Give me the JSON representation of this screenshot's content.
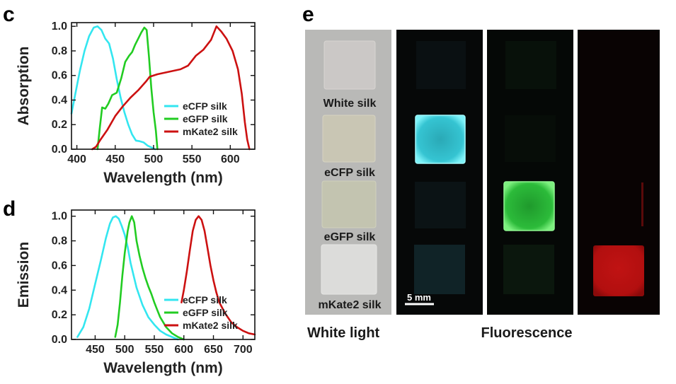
{
  "panels": {
    "c": {
      "letter": "c"
    },
    "d": {
      "letter": "d"
    },
    "e": {
      "letter": "e"
    }
  },
  "chart_data": [
    {
      "id": "c",
      "type": "line",
      "title": "",
      "xlabel": "Wavelength (nm)",
      "ylabel": "Absorption",
      "xlim": [
        393,
        632
      ],
      "ylim": [
        0,
        1.03
      ],
      "xticks": [
        400,
        450,
        500,
        550,
        600
      ],
      "yticks": [
        0.0,
        0.2,
        0.4,
        0.6,
        0.8,
        1.0
      ],
      "ytick_labels": [
        "0.0",
        "0.2",
        "0.4",
        "0.6",
        "0.8",
        "1.0"
      ],
      "grid": false,
      "legend_position": "lower-right",
      "series": [
        {
          "name": "eCFP silk",
          "color": "#33e6f0",
          "points": [
            [
              393,
              0.29
            ],
            [
              398,
              0.45
            ],
            [
              404,
              0.64
            ],
            [
              410,
              0.8
            ],
            [
              416,
              0.92
            ],
            [
              422,
              0.99
            ],
            [
              427,
              1.0
            ],
            [
              432,
              0.97
            ],
            [
              437,
              0.9
            ],
            [
              442,
              0.86
            ],
            [
              447,
              0.74
            ],
            [
              452,
              0.57
            ],
            [
              457,
              0.42
            ],
            [
              462,
              0.3
            ],
            [
              467,
              0.2
            ],
            [
              472,
              0.12
            ],
            [
              477,
              0.07
            ],
            [
              482,
              0.065
            ],
            [
              487,
              0.055
            ],
            [
              492,
              0.03
            ],
            [
              497,
              0.015
            ],
            [
              502,
              0.0
            ]
          ]
        },
        {
          "name": "eGFP silk",
          "color": "#22cc22",
          "points": [
            [
              427,
              0.0
            ],
            [
              430,
              0.18
            ],
            [
              433,
              0.34
            ],
            [
              437,
              0.33
            ],
            [
              441,
              0.37
            ],
            [
              446,
              0.44
            ],
            [
              452,
              0.46
            ],
            [
              458,
              0.58
            ],
            [
              463,
              0.71
            ],
            [
              468,
              0.76
            ],
            [
              472,
              0.79
            ],
            [
              476,
              0.85
            ],
            [
              480,
              0.9
            ],
            [
              484,
              0.95
            ],
            [
              488,
              0.99
            ],
            [
              491,
              0.97
            ],
            [
              494,
              0.75
            ],
            [
              497,
              0.5
            ],
            [
              500,
              0.3
            ],
            [
              503,
              0.15
            ],
            [
              505,
              0.0
            ]
          ]
        },
        {
          "name": "mKate2 silk",
          "color": "#cc1111",
          "points": [
            [
              420,
              0.0
            ],
            [
              425,
              0.02
            ],
            [
              430,
              0.07
            ],
            [
              440,
              0.16
            ],
            [
              450,
              0.27
            ],
            [
              460,
              0.35
            ],
            [
              470,
              0.42
            ],
            [
              480,
              0.48
            ],
            [
              490,
              0.55
            ],
            [
              495,
              0.59
            ],
            [
              505,
              0.61
            ],
            [
              520,
              0.63
            ],
            [
              535,
              0.65
            ],
            [
              545,
              0.68
            ],
            [
              555,
              0.76
            ],
            [
              565,
              0.81
            ],
            [
              575,
              0.89
            ],
            [
              582,
              1.0
            ],
            [
              588,
              0.96
            ],
            [
              595,
              0.9
            ],
            [
              603,
              0.8
            ],
            [
              610,
              0.65
            ],
            [
              615,
              0.45
            ],
            [
              619,
              0.22
            ],
            [
              622,
              0.08
            ],
            [
              625,
              0.0
            ]
          ]
        }
      ]
    },
    {
      "id": "d",
      "type": "line",
      "title": "",
      "xlabel": "Wavelength (nm)",
      "ylabel": "Emission",
      "xlim": [
        410,
        720
      ],
      "ylim": [
        0,
        1.05
      ],
      "xticks": [
        450,
        500,
        550,
        600,
        650,
        700
      ],
      "yticks": [
        0.0,
        0.2,
        0.4,
        0.6,
        0.8,
        1.0
      ],
      "ytick_labels": [
        "0.0",
        "0.2",
        "0.4",
        "0.6",
        "0.8",
        "1.0"
      ],
      "grid": false,
      "legend_position": "lower-right",
      "series": [
        {
          "name": "eCFP silk",
          "color": "#33e6f0",
          "points": [
            [
              420,
              0.02
            ],
            [
              430,
              0.1
            ],
            [
              440,
              0.25
            ],
            [
              450,
              0.45
            ],
            [
              460,
              0.65
            ],
            [
              468,
              0.82
            ],
            [
              475,
              0.94
            ],
            [
              480,
              0.99
            ],
            [
              485,
              1.0
            ],
            [
              490,
              0.98
            ],
            [
              495,
              0.92
            ],
            [
              500,
              0.85
            ],
            [
              505,
              0.75
            ],
            [
              510,
              0.62
            ],
            [
              515,
              0.52
            ],
            [
              520,
              0.42
            ],
            [
              525,
              0.35
            ],
            [
              530,
              0.28
            ],
            [
              540,
              0.18
            ],
            [
              550,
              0.12
            ],
            [
              560,
              0.07
            ],
            [
              570,
              0.04
            ],
            [
              580,
              0.02
            ],
            [
              590,
              0.0
            ]
          ]
        },
        {
          "name": "eGFP silk",
          "color": "#22cc22",
          "points": [
            [
              484,
              0.02
            ],
            [
              488,
              0.12
            ],
            [
              492,
              0.3
            ],
            [
              496,
              0.52
            ],
            [
              500,
              0.7
            ],
            [
              505,
              0.88
            ],
            [
              508,
              0.95
            ],
            [
              512,
              1.0
            ],
            [
              516,
              0.95
            ],
            [
              520,
              0.8
            ],
            [
              525,
              0.68
            ],
            [
              530,
              0.58
            ],
            [
              535,
              0.5
            ],
            [
              540,
              0.43
            ],
            [
              545,
              0.37
            ],
            [
              550,
              0.3
            ],
            [
              555,
              0.24
            ],
            [
              560,
              0.18
            ],
            [
              570,
              0.1
            ],
            [
              580,
              0.05
            ],
            [
              590,
              0.02
            ],
            [
              600,
              0.0
            ]
          ]
        },
        {
          "name": "mKate2 silk",
          "color": "#cc1111",
          "points": [
            [
              596,
              0.3
            ],
            [
              600,
              0.4
            ],
            [
              605,
              0.55
            ],
            [
              610,
              0.72
            ],
            [
              615,
              0.88
            ],
            [
              620,
              0.97
            ],
            [
              625,
              1.0
            ],
            [
              630,
              0.97
            ],
            [
              635,
              0.88
            ],
            [
              640,
              0.74
            ],
            [
              645,
              0.6
            ],
            [
              650,
              0.48
            ],
            [
              655,
              0.38
            ],
            [
              660,
              0.3
            ],
            [
              670,
              0.21
            ],
            [
              680,
              0.14
            ],
            [
              690,
              0.1
            ],
            [
              700,
              0.07
            ],
            [
              710,
              0.05
            ],
            [
              720,
              0.04
            ]
          ]
        }
      ]
    }
  ],
  "photo_panel": {
    "white_light_labels": [
      "White silk",
      "eCFP silk",
      "eGFP silk",
      "mKate2 silk"
    ],
    "scale_bar_label": "5 mm",
    "caption_white_light": "White light",
    "caption_fluorescence": "Fluorescence",
    "colors": {
      "white_light_bg": "#b9b9b7",
      "fluor_bg": "#080808",
      "cyan": "#3fd3df",
      "green": "#3fd24a",
      "red": "#d01a1a"
    }
  }
}
